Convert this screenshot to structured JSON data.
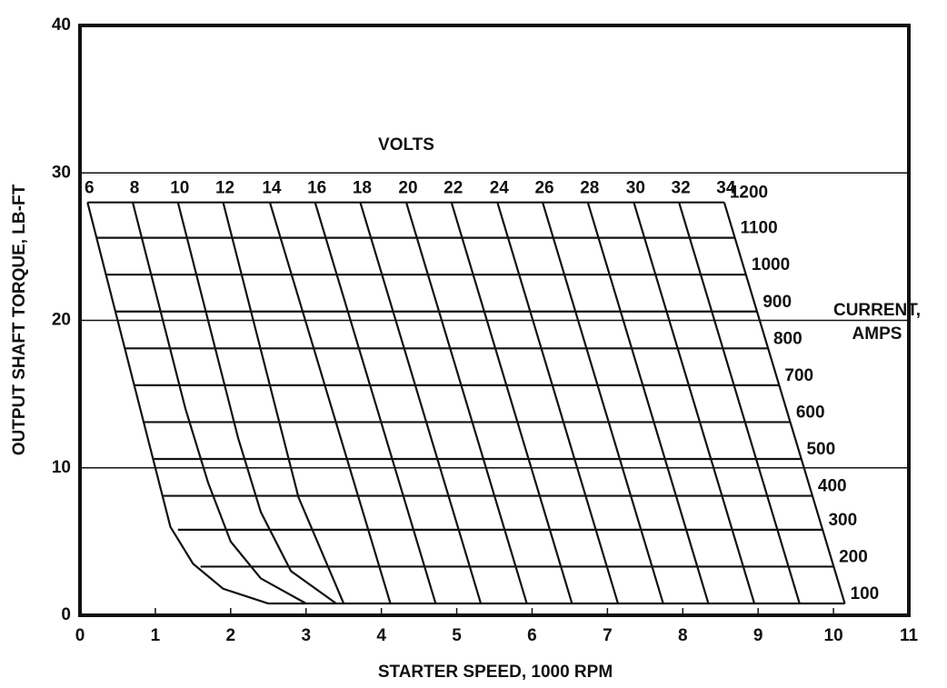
{
  "chart_data": {
    "type": "performance-grid",
    "x_label": "STARTER SPEED, 1000 RPM",
    "y_label": "OUTPUT SHAFT TORQUE, LB-FT",
    "volts_title": "VOLTS",
    "current_title": "CURRENT,",
    "current_title_unit": "AMPS",
    "xlim": [
      0,
      11
    ],
    "xticks": [
      0,
      1,
      2,
      3,
      4,
      5,
      6,
      7,
      8,
      9,
      10,
      11
    ],
    "ylim": [
      0,
      40
    ],
    "yticks": [
      0,
      10,
      20,
      30,
      40
    ],
    "grid": "y",
    "color": "#000000",
    "volt_lines": [
      {
        "volts": 6,
        "x": [
          0.1,
          1.0,
          1.2,
          1.5,
          1.9,
          2.5
        ],
        "y": [
          28,
          10,
          6,
          3.5,
          1.8,
          0.8
        ]
      },
      {
        "volts": 8,
        "x": [
          0.7,
          1.4,
          1.7,
          2.0,
          2.4,
          3.0
        ],
        "y": [
          28,
          14,
          9,
          5,
          2.5,
          0.8
        ]
      },
      {
        "volts": 10,
        "x": [
          1.3,
          2.1,
          2.4,
          2.8,
          3.4
        ],
        "y": [
          28,
          12,
          7,
          3,
          0.8
        ]
      },
      {
        "volts": 12,
        "x": [
          1.9,
          2.9,
          3.5
        ],
        "y": [
          28,
          8,
          0.8
        ]
      },
      {
        "volts": 14,
        "x": [
          2.52,
          4.12
        ],
        "y": [
          28,
          0.8
        ]
      },
      {
        "volts": 16,
        "x": [
          3.12,
          4.72
        ],
        "y": [
          28,
          0.8
        ]
      },
      {
        "volts": 18,
        "x": [
          3.72,
          5.32
        ],
        "y": [
          28,
          0.8
        ]
      },
      {
        "volts": 20,
        "x": [
          4.33,
          5.93
        ],
        "y": [
          28,
          0.8
        ]
      },
      {
        "volts": 22,
        "x": [
          4.93,
          6.53
        ],
        "y": [
          28,
          0.8
        ]
      },
      {
        "volts": 24,
        "x": [
          5.54,
          7.14
        ],
        "y": [
          28,
          0.8
        ]
      },
      {
        "volts": 26,
        "x": [
          6.14,
          7.74
        ],
        "y": [
          28,
          0.8
        ]
      },
      {
        "volts": 28,
        "x": [
          6.74,
          8.34
        ],
        "y": [
          28,
          0.8
        ]
      },
      {
        "volts": 30,
        "x": [
          7.35,
          8.95
        ],
        "y": [
          28,
          0.8
        ]
      },
      {
        "volts": 32,
        "x": [
          7.95,
          9.55
        ],
        "y": [
          28,
          0.8
        ]
      },
      {
        "volts": 34,
        "x": [
          8.55,
          10.15
        ],
        "y": [
          28,
          0.8
        ]
      }
    ],
    "current_lines": [
      {
        "amps": 1200,
        "x": [
          0.1,
          8.55
        ],
        "y": [
          28,
          28
        ]
      },
      {
        "amps": 1100,
        "x": [
          0.22,
          8.69
        ],
        "y": [
          25.6,
          25.6
        ]
      },
      {
        "amps": 1000,
        "x": [
          0.35,
          8.84
        ],
        "y": [
          23.1,
          23.1
        ]
      },
      {
        "amps": 900,
        "x": [
          0.47,
          8.99
        ],
        "y": [
          20.6,
          20.6
        ]
      },
      {
        "amps": 800,
        "x": [
          0.6,
          9.13
        ],
        "y": [
          18.1,
          18.1
        ]
      },
      {
        "amps": 700,
        "x": [
          0.72,
          9.28
        ],
        "y": [
          15.6,
          15.6
        ]
      },
      {
        "amps": 600,
        "x": [
          0.85,
          9.43
        ],
        "y": [
          13.1,
          13.1
        ]
      },
      {
        "amps": 500,
        "x": [
          0.97,
          9.57
        ],
        "y": [
          10.6,
          10.6
        ]
      },
      {
        "amps": 400,
        "x": [
          1.1,
          9.72
        ],
        "y": [
          8.1,
          8.1
        ]
      },
      {
        "amps": 300,
        "x": [
          1.3,
          9.86
        ],
        "y": [
          5.8,
          5.8
        ]
      },
      {
        "amps": 200,
        "x": [
          1.6,
          10.0
        ],
        "y": [
          3.3,
          3.3
        ]
      },
      {
        "amps": 100,
        "x": [
          2.5,
          10.15
        ],
        "y": [
          0.8,
          0.8
        ]
      }
    ]
  }
}
